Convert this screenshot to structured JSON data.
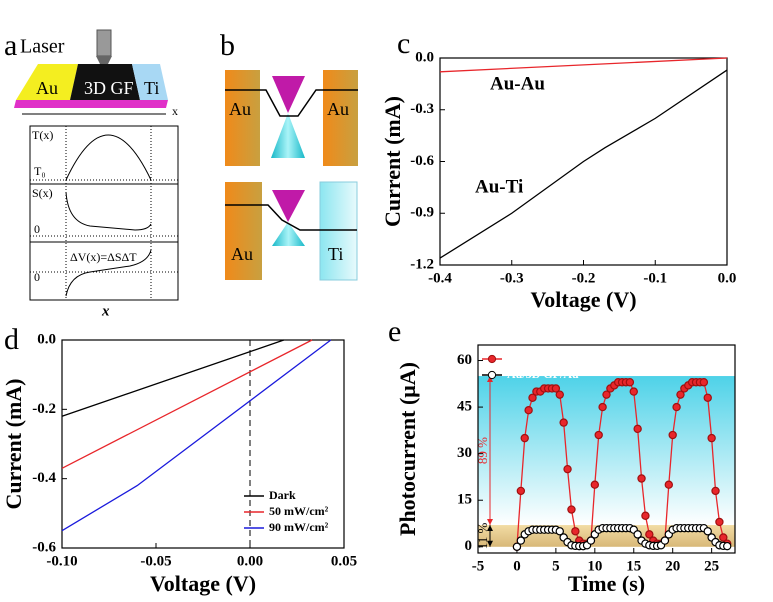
{
  "figure": {
    "a": {
      "panel_label": "a",
      "laser": "Laser",
      "left_contact": "Au",
      "channel": "3D GF",
      "right_contact": "Ti",
      "axis_label": "x",
      "plot_labels": [
        "T(x)",
        "S(x)",
        "ΔV(x)=ΔSΔT"
      ],
      "baseline_labels": [
        "T₀",
        "0",
        "0"
      ],
      "bottom_label": "x"
    },
    "b": {
      "panel_label": "b",
      "top_left": "Au",
      "top_right": "Au",
      "bottom_left": "Au",
      "bottom_right": "Ti"
    }
  },
  "chart_data": [
    {
      "panel_label": "c",
      "type": "line",
      "xlabel": "Voltage (V)",
      "ylabel": "Current (mA)",
      "xlim": [
        -0.4,
        0
      ],
      "ylim": [
        -1.2,
        0
      ],
      "xticks": [
        -0.4,
        -0.3,
        -0.2,
        -0.1,
        {
          "value": 0,
          "label": "0.0"
        }
      ],
      "yticks": [
        {
          "value": 0,
          "label": "0.0"
        },
        -0.3,
        -0.6,
        -0.9,
        -1.2
      ],
      "series": [
        {
          "name": "Au-Au",
          "color": "#e8262b",
          "x": [
            -0.4,
            0
          ],
          "values": [
            -0.08,
            0
          ]
        },
        {
          "name": "Au-Ti",
          "color": "#000000",
          "x": [
            -0.4,
            -0.3,
            -0.2,
            -0.17,
            -0.1,
            0
          ],
          "values": [
            -1.16,
            -0.9,
            -0.6,
            -0.52,
            -0.35,
            -0.07
          ]
        }
      ]
    },
    {
      "panel_label": "d",
      "type": "line",
      "xlabel": "Voltage (V)",
      "ylabel": "Current (mA)",
      "xlim": [
        -0.1,
        0.05
      ],
      "ylim": [
        -0.6,
        0
      ],
      "xticks": [
        {
          "value": -0.1,
          "label": "-0.10"
        },
        -0.05,
        {
          "value": 0,
          "label": "0.00"
        },
        0.05
      ],
      "yticks": [
        {
          "value": 0,
          "label": "0.0"
        },
        -0.2,
        -0.4,
        -0.6
      ],
      "legend": "lower right",
      "series": [
        {
          "name": "Dark",
          "color": "#000000",
          "x": [
            -0.1,
            0.018
          ],
          "values": [
            -0.22,
            0
          ]
        },
        {
          "name": "50 mW/cm²",
          "color": "#e8262b",
          "x": [
            -0.1,
            0.033
          ],
          "values": [
            -0.37,
            0
          ]
        },
        {
          "name": "90 mW/cm²",
          "color": "#1a1adc",
          "x": [
            -0.1,
            -0.06,
            0.043
          ],
          "values": [
            -0.55,
            -0.42,
            0
          ]
        }
      ]
    },
    {
      "panel_label": "e",
      "type": "line",
      "marker": "circle",
      "xlabel": "Time (s)",
      "ylabel": "Photocurrent (μA)",
      "xlim": [
        -5,
        28
      ],
      "ylim": [
        -2,
        65
      ],
      "xticks": [
        -5,
        0,
        5,
        10,
        15,
        20,
        25
      ],
      "yticks": [
        0,
        15,
        30,
        45,
        60
      ],
      "legend": "upper left",
      "annotations": [
        {
          "text": "89 %",
          "from": 7,
          "to": 55,
          "color": "#e8262b"
        },
        {
          "text": "11 %",
          "from": 0,
          "to": 7,
          "color": "#000000"
        }
      ],
      "series": [
        {
          "name": "Au/3D GF/Ti",
          "color": "#e8262b",
          "x": [
            0,
            0.5,
            1,
            1.5,
            2,
            2.5,
            3,
            3.5,
            4,
            4.5,
            5,
            5.5,
            6,
            6.5,
            7,
            7.5,
            8,
            8.5,
            9,
            9.5,
            10,
            10.5,
            11,
            11.5,
            12,
            12.5,
            13,
            13.5,
            14,
            14.5,
            15,
            15.5,
            16,
            16.5,
            17,
            17.5,
            18,
            18.5,
            19,
            19.5,
            20,
            20.5,
            21,
            21.5,
            22,
            22.5,
            23,
            23.5,
            24,
            24.5,
            25,
            25.5,
            26,
            26.5,
            27
          ],
          "values": [
            0,
            18,
            35,
            44,
            48,
            50,
            50,
            51,
            51,
            51,
            51,
            49,
            40,
            25,
            12,
            5,
            2,
            1,
            1,
            2,
            20,
            36,
            45,
            49,
            51,
            52,
            53,
            53,
            53,
            53,
            50,
            38,
            22,
            10,
            4,
            2,
            1,
            1,
            2,
            20,
            36,
            45,
            49,
            51,
            52,
            53,
            53,
            53,
            53,
            48,
            35,
            18,
            8,
            3,
            1
          ]
        },
        {
          "name": "Au/3D GF/Au",
          "color": "#000000",
          "x": [
            0,
            0.5,
            1,
            1.5,
            2,
            2.5,
            3,
            3.5,
            4,
            4.5,
            5,
            5.5,
            6,
            6.5,
            7,
            7.5,
            8,
            8.5,
            9,
            9.5,
            10,
            10.5,
            11,
            11.5,
            12,
            12.5,
            13,
            13.5,
            14,
            14.5,
            15,
            15.5,
            16,
            16.5,
            17,
            17.5,
            18,
            18.5,
            19,
            19.5,
            20,
            20.5,
            21,
            21.5,
            22,
            22.5,
            23,
            23.5,
            24,
            24.5,
            25,
            25.5,
            26,
            26.5,
            27
          ],
          "values": [
            0,
            2,
            4,
            5,
            5.5,
            5.5,
            5.5,
            5.5,
            5.5,
            5.5,
            5.5,
            5,
            3,
            1.5,
            0.5,
            0.3,
            0.2,
            0.2,
            0.5,
            2,
            4,
            5.5,
            6,
            6,
            6,
            6,
            6,
            6,
            6,
            6,
            5.5,
            4,
            2,
            1,
            0.5,
            0.3,
            0.3,
            0.5,
            2,
            4,
            5.5,
            6,
            6,
            6,
            6,
            6,
            6,
            6,
            6,
            5,
            3,
            1.5,
            0.5,
            0.3,
            0.2
          ]
        }
      ]
    }
  ]
}
